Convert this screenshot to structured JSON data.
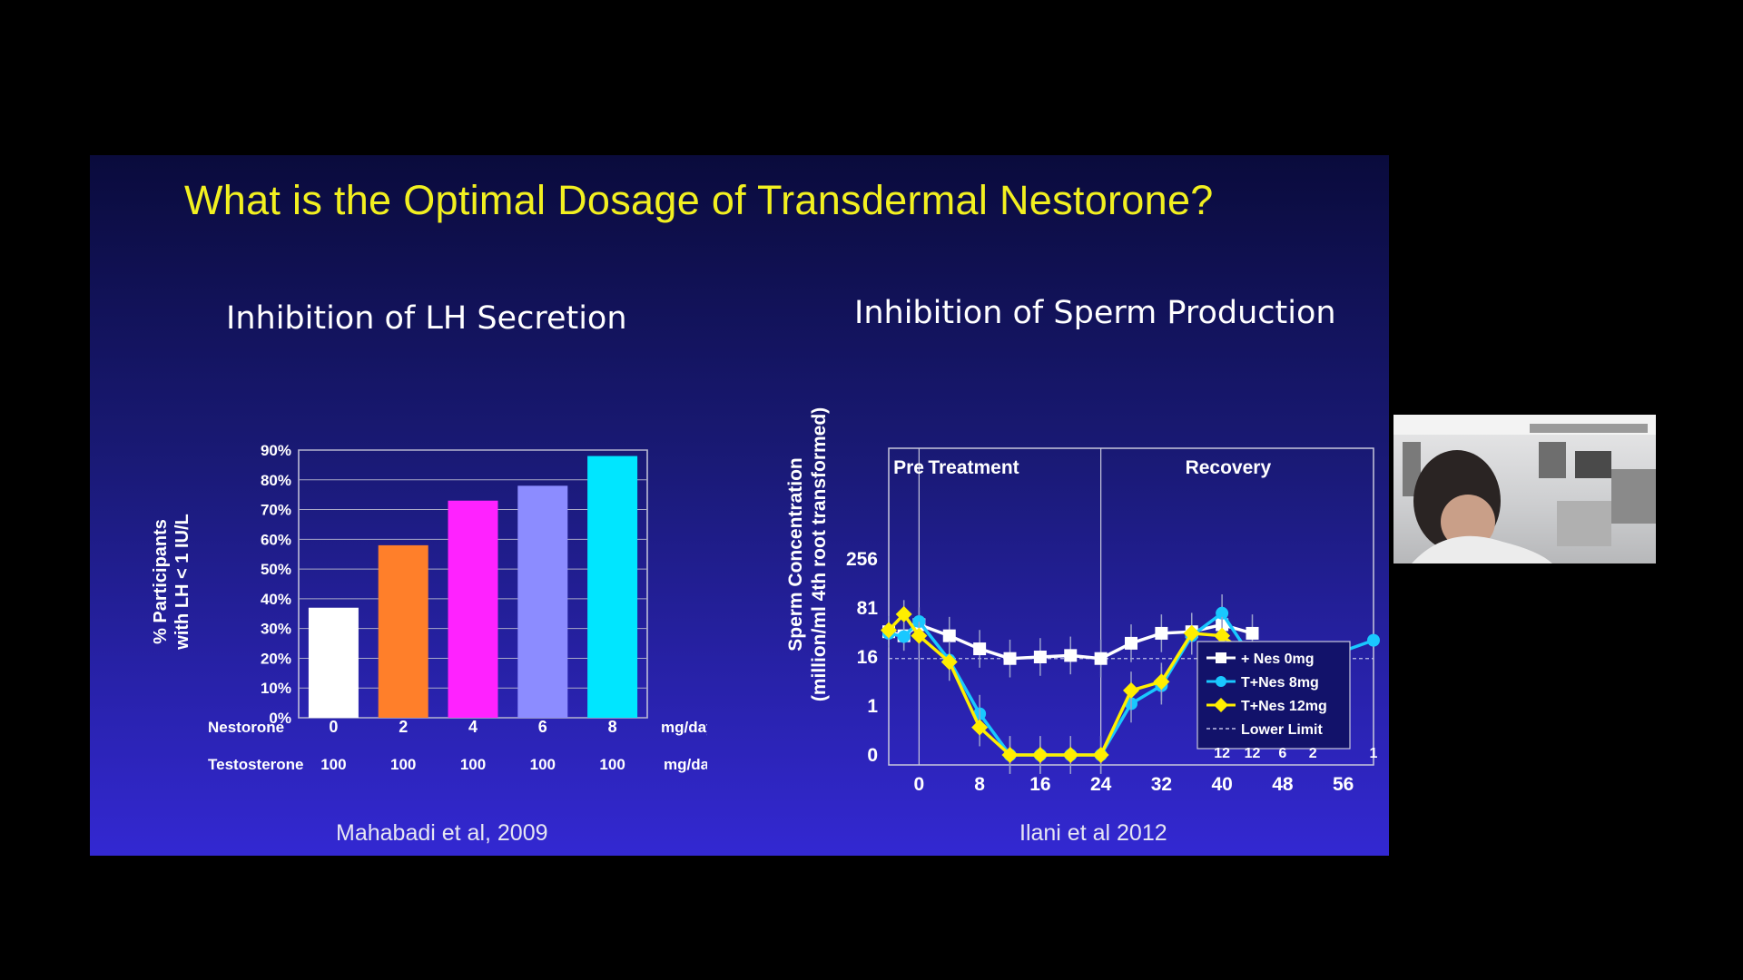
{
  "slide": {
    "title": "What is the Optimal Dosage of Transdermal Nestorone?"
  },
  "colors": {
    "background_top": "#0a0b3c",
    "background_bottom": "#3328d2",
    "title": "#f2f020",
    "bar_colors": [
      "#ffffff",
      "#ff7f2a",
      "#ff22ff",
      "#8c8cff",
      "#00e6ff"
    ],
    "series_colors": [
      "#ffffff",
      "#19c8ff",
      "#ffee00"
    ]
  },
  "left_panel": {
    "title": "Inhibition of LH Secretion",
    "citation": "Mahabadi et al, 2009",
    "row_labels": {
      "nestorone": "Nestorone",
      "testosterone": "Testosterone",
      "unit": "mg/day"
    }
  },
  "right_panel": {
    "title": "Inhibition of Sperm Production",
    "citation": "Ilani et al 2012",
    "phases": [
      "Pre",
      "Treatment",
      "Recovery"
    ]
  },
  "chart_data": [
    {
      "type": "bar",
      "title": "Inhibition of LH Secretion",
      "ylabel": "% Participants with LH < 1 IU/L",
      "ylim": [
        0,
        90
      ],
      "yticks": [
        "0%",
        "10%",
        "20%",
        "30%",
        "40%",
        "50%",
        "60%",
        "70%",
        "80%",
        "90%"
      ],
      "categories": [
        "0",
        "2",
        "4",
        "6",
        "8"
      ],
      "values": [
        37,
        58,
        73,
        78,
        88
      ],
      "nestorone_doses": [
        "0",
        "2",
        "4",
        "6",
        "8"
      ],
      "testosterone_doses": [
        "100",
        "100",
        "100",
        "100",
        "100"
      ],
      "grid": true
    },
    {
      "type": "line",
      "title": "Inhibition of Sperm Production",
      "ylabel": "Sperm Concentration (million/ml 4th root transformed)",
      "y_scale": "4th root",
      "yticks": [
        "0",
        "1",
        "16",
        "81",
        "256"
      ],
      "xticks": [
        "0",
        "8",
        "16",
        "24",
        "32",
        "40",
        "48",
        "56"
      ],
      "xlim": [
        -4,
        60
      ],
      "phase_boundaries": [
        0,
        24
      ],
      "lower_limit": 15,
      "bottom_counts": [
        "12",
        "12",
        "6",
        "2",
        "1"
      ],
      "legend_position": "bottom-right",
      "series": [
        {
          "name": "+ Nes 0mg",
          "marker": "square",
          "x": [
            -4,
            -2,
            0,
            4,
            8,
            12,
            16,
            20,
            24,
            28,
            32,
            36,
            40,
            44
          ],
          "y": [
            40,
            35,
            50,
            35,
            22,
            15,
            16,
            17,
            15,
            27,
            38,
            40,
            50,
            38
          ],
          "error": [
            6,
            6,
            6,
            8,
            8,
            8,
            8,
            8,
            8,
            8,
            8,
            8,
            8,
            8
          ]
        },
        {
          "name": "T+Nes 8mg",
          "marker": "circle",
          "x": [
            -4,
            -2,
            0,
            4,
            8,
            12,
            16,
            20,
            24,
            28,
            32,
            36,
            40,
            44,
            48,
            52,
            60
          ],
          "y": [
            38,
            34,
            55,
            14,
            0.5,
            0,
            0,
            0,
            0,
            1.2,
            4,
            35,
            70,
            15,
            13,
            13,
            30
          ],
          "error": [
            6,
            6,
            6,
            8,
            8,
            8,
            8,
            8,
            8,
            8,
            8,
            8,
            8,
            4,
            4,
            4,
            0
          ]
        },
        {
          "name": "T+Nes 12mg",
          "marker": "diamond",
          "x": [
            -4,
            -2,
            0,
            4,
            8,
            12,
            16,
            20,
            24,
            28,
            32,
            36,
            40,
            44,
            48,
            52
          ],
          "y": [
            42,
            68,
            35,
            13,
            0.1,
            0,
            0,
            0,
            0,
            3,
            5,
            38,
            35,
            15,
            16,
            17
          ],
          "error": [
            6,
            6,
            6,
            8,
            8,
            8,
            8,
            8,
            8,
            8,
            8,
            8,
            8,
            4,
            4,
            4
          ]
        }
      ],
      "legend_extra": "Lower Limit"
    }
  ]
}
